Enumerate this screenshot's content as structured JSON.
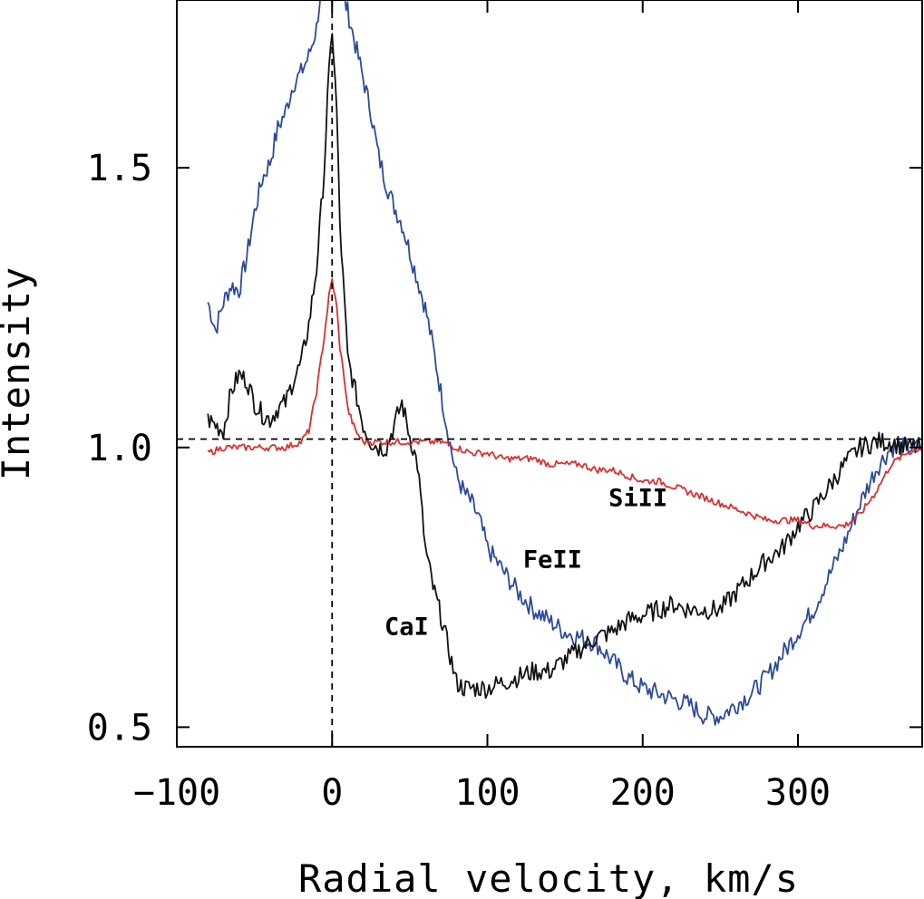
{
  "chart_data": {
    "type": "line",
    "xlabel": "Radial velocity, km/s",
    "ylabel": "Intensity",
    "xlim": [
      -100,
      380
    ],
    "ylim": [
      0.465,
      1.8
    ],
    "x_ticks": [
      -100,
      0,
      100,
      200,
      300
    ],
    "x_tick_labels": [
      "−100",
      "0",
      "100",
      "200",
      "300"
    ],
    "y_ticks": [
      0.5,
      1.0,
      1.5
    ],
    "y_tick_labels": [
      "0.5",
      "1.0",
      "1.5"
    ],
    "reference_lines": {
      "horizontal_y": 1.015,
      "vertical_x": 0
    },
    "grid": false,
    "series": [
      {
        "name": "FeII",
        "color": "#2b4a9a",
        "x": [
          -80,
          -75,
          -70,
          -65,
          -60,
          -55,
          -50,
          -45,
          -40,
          -35,
          -30,
          -25,
          -20,
          -15,
          -10,
          -8,
          -5,
          5,
          8,
          10,
          15,
          20,
          25,
          30,
          35,
          40,
          45,
          50,
          55,
          60,
          65,
          70,
          75,
          80,
          85,
          90,
          95,
          100,
          110,
          120,
          130,
          140,
          150,
          160,
          170,
          180,
          190,
          200,
          210,
          220,
          230,
          240,
          250,
          260,
          270,
          280,
          290,
          300,
          310,
          320,
          330,
          340,
          350,
          360,
          370,
          380
        ],
        "y": [
          1.26,
          1.21,
          1.26,
          1.29,
          1.28,
          1.34,
          1.42,
          1.48,
          1.51,
          1.57,
          1.6,
          1.65,
          1.67,
          1.7,
          1.75,
          1.8,
          1.85,
          1.85,
          1.8,
          1.78,
          1.72,
          1.66,
          1.6,
          1.52,
          1.47,
          1.43,
          1.4,
          1.35,
          1.3,
          1.25,
          1.18,
          1.1,
          1.02,
          0.95,
          0.92,
          0.9,
          0.87,
          0.82,
          0.78,
          0.74,
          0.71,
          0.69,
          0.67,
          0.66,
          0.65,
          0.62,
          0.59,
          0.57,
          0.56,
          0.55,
          0.54,
          0.52,
          0.52,
          0.54,
          0.56,
          0.59,
          0.63,
          0.67,
          0.71,
          0.77,
          0.83,
          0.9,
          0.96,
          1.0,
          1.0,
          1.0
        ]
      },
      {
        "name": "CaI",
        "color": "#111111",
        "x": [
          -80,
          -75,
          -70,
          -65,
          -60,
          -55,
          -50,
          -45,
          -40,
          -35,
          -30,
          -25,
          -20,
          -15,
          -10,
          -5,
          -3,
          0,
          3,
          5,
          10,
          15,
          20,
          25,
          30,
          35,
          40,
          45,
          50,
          55,
          60,
          65,
          70,
          75,
          80,
          85,
          90,
          100,
          110,
          120,
          130,
          140,
          150,
          160,
          170,
          180,
          190,
          200,
          210,
          220,
          230,
          240,
          250,
          260,
          270,
          280,
          290,
          300,
          310,
          320,
          330,
          340,
          350,
          360,
          370,
          380
        ],
        "y": [
          1.05,
          1.04,
          1.03,
          1.1,
          1.13,
          1.12,
          1.08,
          1.06,
          1.05,
          1.07,
          1.08,
          1.12,
          1.15,
          1.22,
          1.32,
          1.5,
          1.62,
          1.75,
          1.6,
          1.4,
          1.16,
          1.1,
          1.04,
          1.01,
          1.0,
          1.0,
          1.04,
          1.08,
          1.02,
          0.97,
          0.82,
          0.75,
          0.7,
          0.64,
          0.58,
          0.57,
          0.57,
          0.57,
          0.58,
          0.59,
          0.6,
          0.6,
          0.62,
          0.64,
          0.66,
          0.67,
          0.69,
          0.7,
          0.71,
          0.72,
          0.71,
          0.71,
          0.71,
          0.74,
          0.77,
          0.8,
          0.82,
          0.86,
          0.89,
          0.93,
          0.97,
          1.0,
          1.01,
          1.01,
          1.0,
          1.0
        ]
      },
      {
        "name": "SiII",
        "color": "#d93030",
        "x": [
          -80,
          -70,
          -60,
          -50,
          -40,
          -30,
          -20,
          -15,
          -10,
          -5,
          -2,
          0,
          3,
          5,
          8,
          10,
          15,
          20,
          30,
          40,
          50,
          60,
          70,
          80,
          90,
          100,
          110,
          120,
          130,
          140,
          150,
          160,
          170,
          180,
          190,
          200,
          210,
          220,
          230,
          240,
          250,
          260,
          270,
          280,
          290,
          300,
          310,
          320,
          330,
          340,
          350,
          360,
          370,
          380
        ],
        "y": [
          0.99,
          1.0,
          1.0,
          1.0,
          1.0,
          1.0,
          1.01,
          1.03,
          1.1,
          1.2,
          1.27,
          1.3,
          1.25,
          1.18,
          1.12,
          1.07,
          1.03,
          1.01,
          1.01,
          1.01,
          1.01,
          1.01,
          1.01,
          1.0,
          0.99,
          0.99,
          0.98,
          0.98,
          0.98,
          0.97,
          0.97,
          0.97,
          0.96,
          0.96,
          0.95,
          0.94,
          0.94,
          0.93,
          0.92,
          0.91,
          0.9,
          0.89,
          0.88,
          0.87,
          0.87,
          0.87,
          0.86,
          0.86,
          0.86,
          0.88,
          0.92,
          0.97,
          0.99,
          1.0
        ]
      }
    ],
    "annotations": [
      {
        "text": "SiII",
        "x": 197,
        "y": 0.895
      },
      {
        "text": "FeII",
        "x": 142,
        "y": 0.785
      },
      {
        "text": "CaI",
        "x": 48,
        "y": 0.665
      }
    ]
  }
}
